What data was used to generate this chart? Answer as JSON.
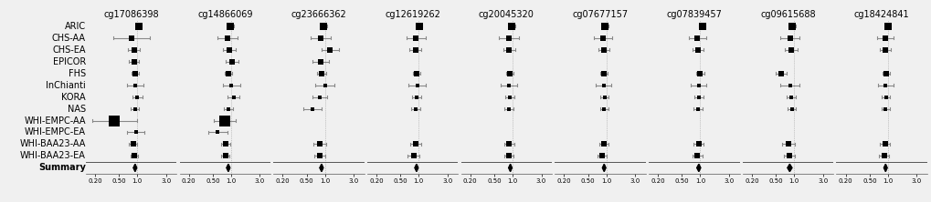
{
  "cpgs": [
    "cg17086398",
    "cg14866069",
    "cg23666362",
    "cg12619262",
    "cg20045320",
    "cg07677157",
    "cg07839457",
    "cg09615688",
    "cg18424841"
  ],
  "studies": [
    "ARIC",
    "CHS-AA",
    "CHS-EA",
    "EPICOR",
    "FHS",
    "InChianti",
    "KORA",
    "NAS",
    "WHI-EMPC-AA",
    "WHI-EMPC-EA",
    "WHI-BAA23-AA",
    "WHI-BAA23-EA",
    "Summary"
  ],
  "xticks": [
    0.2,
    0.5,
    1.0,
    3.0
  ],
  "xlim": [
    0.14,
    4.5
  ],
  "data": {
    "cg17086398": {
      "or": [
        1.05,
        0.8,
        0.88,
        0.88,
        0.92,
        0.92,
        1.0,
        0.92,
        0.42,
        0.95,
        0.85,
        0.9,
        0.92
      ],
      "lo": [
        0.95,
        0.4,
        0.7,
        0.72,
        0.8,
        0.68,
        0.82,
        0.78,
        0.18,
        0.68,
        0.72,
        0.78,
        0.86
      ],
      "hi": [
        1.16,
        1.6,
        1.1,
        1.08,
        1.06,
        1.25,
        1.22,
        1.08,
        1.0,
        1.32,
        1.0,
        1.04,
        0.98
      ]
    },
    "cg14866069": {
      "or": [
        0.98,
        0.88,
        0.92,
        1.05,
        0.9,
        1.0,
        1.1,
        0.9,
        0.78,
        0.6,
        0.82,
        0.8,
        0.9
      ],
      "lo": [
        0.88,
        0.6,
        0.72,
        0.82,
        0.78,
        0.72,
        0.88,
        0.76,
        0.52,
        0.42,
        0.68,
        0.68,
        0.84
      ],
      "hi": [
        1.1,
        1.28,
        1.18,
        1.34,
        1.04,
        1.4,
        1.38,
        1.06,
        1.18,
        0.86,
        0.98,
        0.94,
        0.96
      ]
    },
    "cg23666362": {
      "or": [
        0.95,
        0.85,
        1.22,
        0.85,
        0.88,
        1.0,
        0.82,
        0.62,
        null,
        null,
        0.82,
        0.82,
        0.88
      ],
      "lo": [
        0.84,
        0.58,
        0.88,
        0.62,
        0.74,
        0.7,
        0.62,
        0.44,
        null,
        null,
        0.64,
        0.66,
        0.82
      ],
      "hi": [
        1.08,
        1.24,
        1.68,
        1.16,
        1.04,
        1.42,
        1.08,
        0.88,
        null,
        null,
        1.06,
        1.02,
        0.94
      ]
    },
    "cg12619262": {
      "or": [
        1.02,
        0.9,
        0.88,
        null,
        0.92,
        0.95,
        0.92,
        0.9,
        null,
        null,
        0.88,
        0.82,
        0.92
      ],
      "lo": [
        0.92,
        0.62,
        0.7,
        null,
        0.8,
        0.68,
        0.78,
        0.76,
        null,
        null,
        0.72,
        0.66,
        0.86
      ],
      "hi": [
        1.14,
        1.3,
        1.1,
        null,
        1.06,
        1.32,
        1.08,
        1.06,
        null,
        null,
        1.08,
        1.02,
        0.98
      ]
    },
    "cg20045320": {
      "or": [
        0.98,
        0.88,
        0.88,
        null,
        0.9,
        0.88,
        0.9,
        0.88,
        null,
        null,
        0.88,
        0.86,
        0.92
      ],
      "lo": [
        0.88,
        0.6,
        0.7,
        null,
        0.78,
        0.64,
        0.76,
        0.74,
        null,
        null,
        0.72,
        0.72,
        0.86
      ],
      "hi": [
        1.1,
        1.28,
        1.1,
        null,
        1.04,
        1.2,
        1.06,
        1.04,
        null,
        null,
        1.08,
        1.02,
        0.98
      ]
    },
    "cg07677157": {
      "or": [
        0.96,
        0.88,
        0.92,
        null,
        0.92,
        0.9,
        0.94,
        0.92,
        null,
        null,
        0.92,
        0.86,
        0.92
      ],
      "lo": [
        0.86,
        0.62,
        0.74,
        null,
        0.8,
        0.66,
        0.8,
        0.78,
        null,
        null,
        0.76,
        0.72,
        0.86
      ],
      "hi": [
        1.08,
        1.24,
        1.14,
        null,
        1.06,
        1.22,
        1.1,
        1.08,
        null,
        null,
        1.1,
        1.02,
        0.98
      ]
    },
    "cg07839457": {
      "or": [
        1.08,
        0.9,
        0.92,
        null,
        1.0,
        0.95,
        0.96,
        0.92,
        null,
        null,
        0.94,
        0.9,
        0.95
      ],
      "lo": [
        0.96,
        0.64,
        0.74,
        null,
        0.86,
        0.7,
        0.8,
        0.78,
        null,
        null,
        0.78,
        0.74,
        0.88
      ],
      "hi": [
        1.22,
        1.26,
        1.14,
        null,
        1.16,
        1.28,
        1.14,
        1.08,
        null,
        null,
        1.14,
        1.08,
        1.02
      ]
    },
    "cg09615688": {
      "or": [
        0.92,
        0.86,
        0.9,
        null,
        0.62,
        0.86,
        0.9,
        0.92,
        null,
        null,
        0.82,
        0.84,
        0.85
      ],
      "lo": [
        0.8,
        0.6,
        0.7,
        null,
        0.5,
        0.6,
        0.76,
        0.78,
        null,
        null,
        0.64,
        0.68,
        0.78
      ],
      "hi": [
        1.06,
        1.22,
        1.16,
        null,
        0.76,
        1.22,
        1.06,
        1.08,
        null,
        null,
        1.04,
        1.04,
        0.93
      ]
    },
    "cg18424841": {
      "or": [
        1.0,
        0.92,
        0.92,
        null,
        0.94,
        0.92,
        0.94,
        0.92,
        null,
        null,
        0.9,
        0.88,
        0.92
      ],
      "lo": [
        0.9,
        0.66,
        0.74,
        null,
        0.82,
        0.68,
        0.8,
        0.78,
        null,
        null,
        0.74,
        0.72,
        0.86
      ],
      "hi": [
        1.12,
        1.26,
        1.14,
        null,
        1.08,
        1.24,
        1.1,
        1.08,
        null,
        null,
        1.1,
        1.06,
        0.98
      ]
    }
  },
  "marker_sizes": {
    "ARIC": 5.5,
    "CHS-AA": 4.5,
    "CHS-EA": 4.5,
    "EPICOR": 4.5,
    "FHS": 4.5,
    "InChianti": 3.5,
    "KORA": 3.5,
    "NAS": 3.5,
    "WHI-EMPC-AA": 8.0,
    "WHI-EMPC-EA": 3.5,
    "WHI-BAA23-AA": 4.5,
    "WHI-BAA23-EA": 4.0
  },
  "font_size": 7.0,
  "title_font_size": 7.0,
  "bg_color": "#f0f0f0",
  "ci_color": "#888888",
  "marker_color": "#000000",
  "summary_color": "#000000",
  "xtick_labels": [
    "0.20",
    "0.50",
    "1.0",
    "3.0"
  ]
}
